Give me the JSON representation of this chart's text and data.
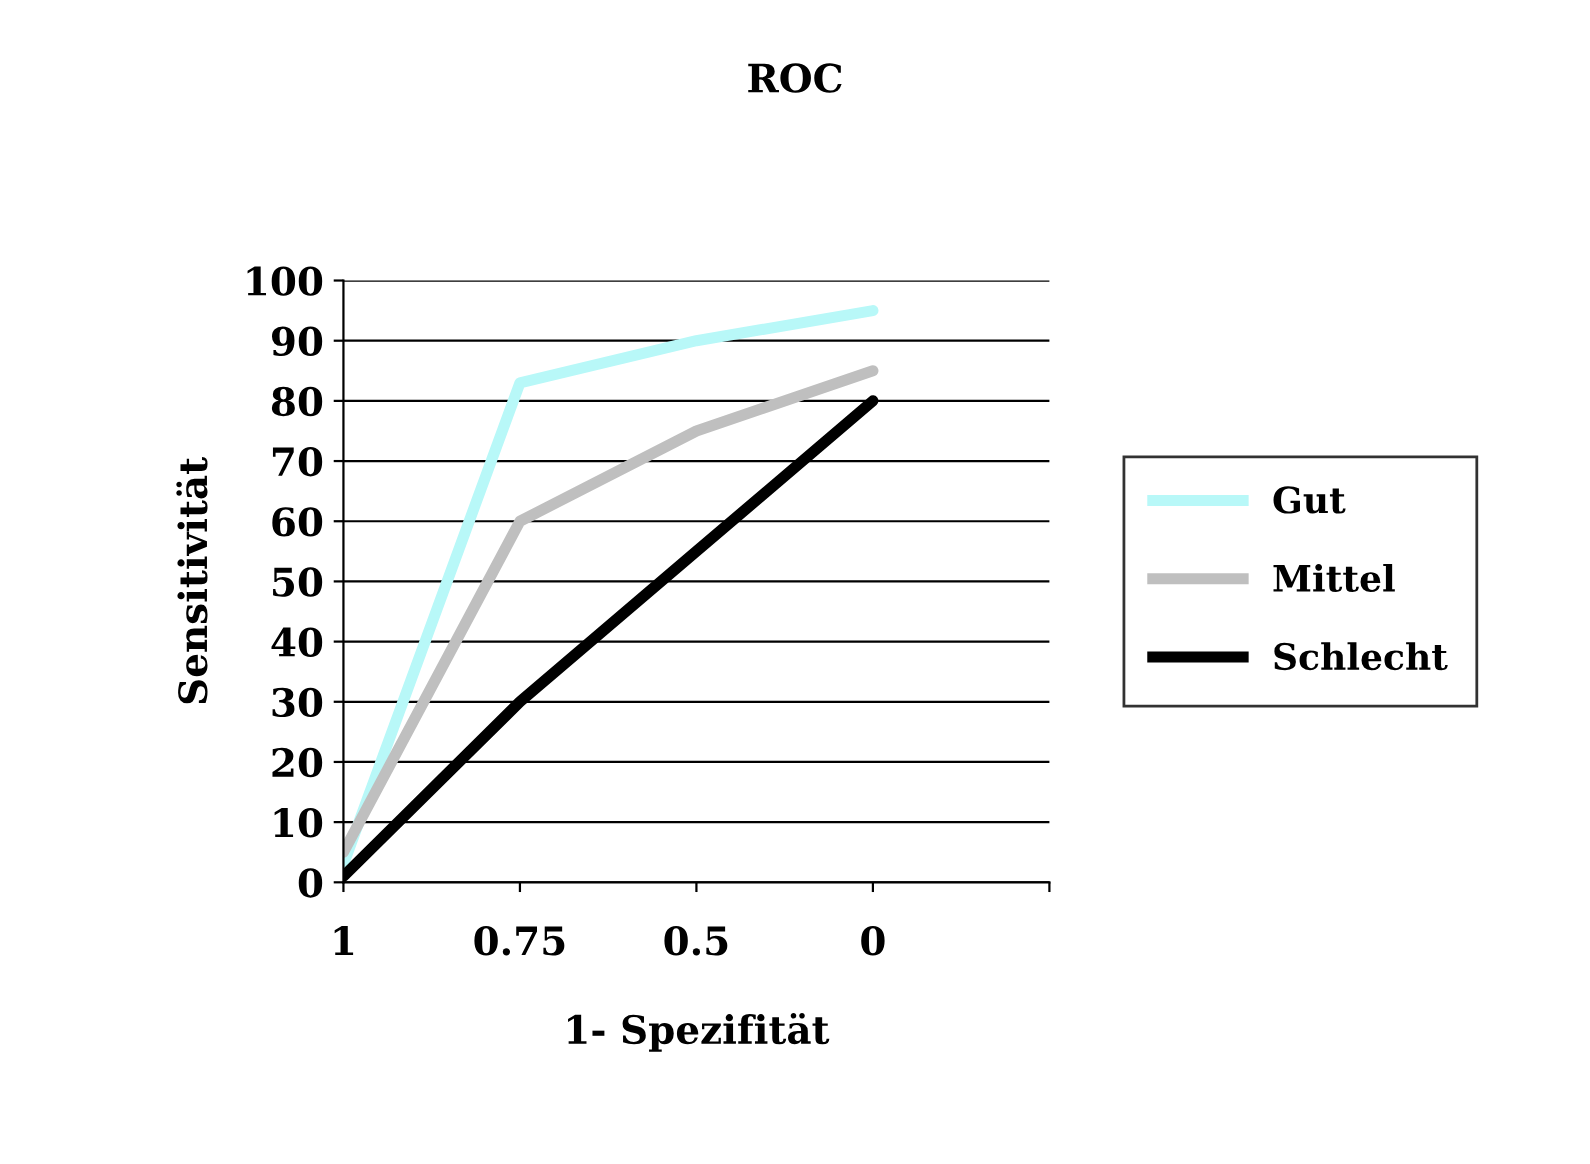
{
  "chart_data": {
    "type": "line",
    "title": "ROC",
    "xlabel": "1- Spezifität",
    "ylabel": "Sensitivität",
    "categories": [
      "1",
      "0.75",
      "0.5",
      "0",
      null
    ],
    "series": [
      {
        "name": "Gut",
        "color": "#b8f8f8",
        "values": [
          3,
          83,
          90,
          95,
          null
        ]
      },
      {
        "name": "Mittel",
        "color": "#bfbfbf",
        "values": [
          5,
          60,
          75,
          85,
          null
        ]
      },
      {
        "name": "Schlecht",
        "color": "#000000",
        "values": [
          1,
          30,
          55,
          80,
          null
        ]
      }
    ],
    "ylim": [
      0,
      100
    ],
    "yticks": [
      0,
      10,
      20,
      30,
      40,
      50,
      60,
      70,
      80,
      90,
      100
    ],
    "grid": "y",
    "legend": "right",
    "marker": "none",
    "line_style": "solid"
  }
}
